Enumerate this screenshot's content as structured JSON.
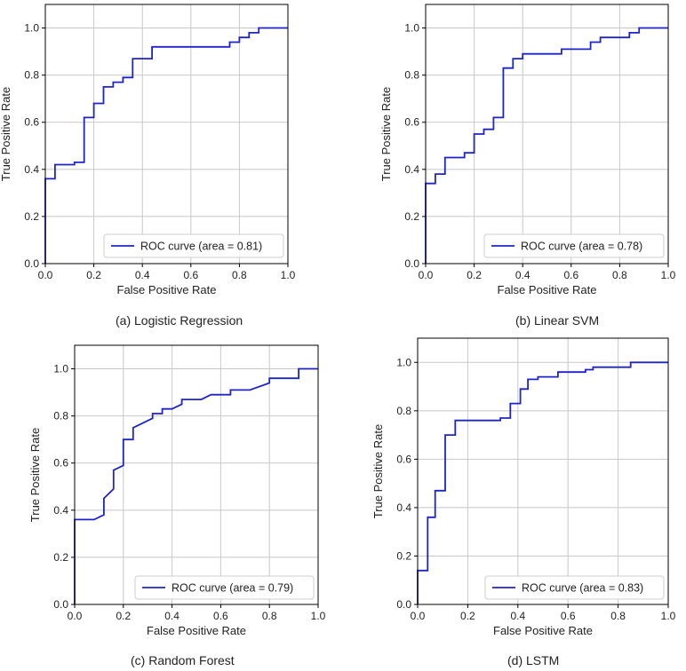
{
  "chart_data": [
    {
      "type": "line",
      "caption": "(a) Logistic Regression",
      "xlabel": "False Positive Rate",
      "ylabel": "True Positive Rate",
      "xlim": [
        0.0,
        1.0
      ],
      "ylim": [
        0.0,
        1.1
      ],
      "xticks": [
        "0.0",
        "0.2",
        "0.4",
        "0.6",
        "0.8",
        "1.0"
      ],
      "yticks": [
        "0.0",
        "0.2",
        "0.4",
        "0.6",
        "0.8",
        "1.0"
      ],
      "grid": true,
      "legend_position": "lower-right",
      "color": "#1f24c8",
      "series": [
        {
          "name": "ROC curve (area = 0.81)",
          "x": [
            0.0,
            0.0,
            0.04,
            0.04,
            0.12,
            0.12,
            0.16,
            0.16,
            0.2,
            0.2,
            0.24,
            0.24,
            0.28,
            0.28,
            0.32,
            0.32,
            0.36,
            0.36,
            0.44,
            0.44,
            0.76,
            0.76,
            0.8,
            0.8,
            0.84,
            0.84,
            0.88,
            0.88,
            1.0
          ],
          "y": [
            0.0,
            0.36,
            0.36,
            0.42,
            0.42,
            0.43,
            0.43,
            0.62,
            0.62,
            0.68,
            0.68,
            0.75,
            0.75,
            0.77,
            0.77,
            0.79,
            0.79,
            0.87,
            0.87,
            0.92,
            0.92,
            0.94,
            0.94,
            0.96,
            0.96,
            0.98,
            0.98,
            1.0,
            1.0
          ]
        }
      ]
    },
    {
      "type": "line",
      "caption": "(b) Linear SVM",
      "xlabel": "False Positive Rate",
      "ylabel": "True Positive Rate",
      "xlim": [
        0.0,
        1.0
      ],
      "ylim": [
        0.0,
        1.1
      ],
      "xticks": [
        "0.0",
        "0.2",
        "0.4",
        "0.6",
        "0.8",
        "1.0"
      ],
      "yticks": [
        "0.0",
        "0.2",
        "0.4",
        "0.6",
        "0.8",
        "1.0"
      ],
      "grid": true,
      "legend_position": "lower-right",
      "color": "#1f24c8",
      "series": [
        {
          "name": "ROC curve (area = 0.78)",
          "x": [
            0.0,
            0.0,
            0.04,
            0.04,
            0.08,
            0.08,
            0.16,
            0.16,
            0.2,
            0.2,
            0.24,
            0.24,
            0.28,
            0.28,
            0.32,
            0.32,
            0.36,
            0.36,
            0.4,
            0.4,
            0.56,
            0.56,
            0.68,
            0.68,
            0.72,
            0.72,
            0.84,
            0.84,
            0.88,
            0.88,
            1.0
          ],
          "y": [
            0.0,
            0.34,
            0.34,
            0.38,
            0.38,
            0.45,
            0.45,
            0.47,
            0.47,
            0.55,
            0.55,
            0.57,
            0.57,
            0.62,
            0.62,
            0.83,
            0.83,
            0.87,
            0.87,
            0.89,
            0.89,
            0.91,
            0.91,
            0.94,
            0.94,
            0.96,
            0.96,
            0.98,
            0.98,
            1.0,
            1.0
          ]
        }
      ]
    },
    {
      "type": "line",
      "caption": "(c) Random Forest",
      "xlabel": "False Positive Rate",
      "ylabel": "True Positive Rate",
      "xlim": [
        0.0,
        1.0
      ],
      "ylim": [
        0.0,
        1.1
      ],
      "xticks": [
        "0.0",
        "0.2",
        "0.4",
        "0.6",
        "0.8",
        "1.0"
      ],
      "yticks": [
        "0.0",
        "0.2",
        "0.4",
        "0.6",
        "0.8",
        "1.0"
      ],
      "grid": true,
      "legend_position": "lower-right",
      "color": "#1f24c8",
      "series": [
        {
          "name": "ROC curve (area = 0.79)",
          "x": [
            0.0,
            0.0,
            0.08,
            0.12,
            0.12,
            0.16,
            0.16,
            0.2,
            0.2,
            0.24,
            0.24,
            0.32,
            0.32,
            0.36,
            0.36,
            0.4,
            0.44,
            0.44,
            0.52,
            0.56,
            0.56,
            0.64,
            0.64,
            0.72,
            0.8,
            0.8,
            0.92,
            0.92,
            1.0
          ],
          "y": [
            0.0,
            0.36,
            0.36,
            0.38,
            0.45,
            0.49,
            0.57,
            0.59,
            0.7,
            0.7,
            0.75,
            0.79,
            0.81,
            0.81,
            0.83,
            0.83,
            0.85,
            0.87,
            0.87,
            0.89,
            0.89,
            0.89,
            0.91,
            0.91,
            0.94,
            0.96,
            0.96,
            1.0,
            1.0
          ]
        }
      ]
    },
    {
      "type": "line",
      "caption": "(d) LSTM",
      "xlabel": "False Positive Rate",
      "ylabel": "True Positive Rate",
      "xlim": [
        0.0,
        1.0
      ],
      "ylim": [
        0.0,
        1.1
      ],
      "xticks": [
        "0.0",
        "0.2",
        "0.4",
        "0.6",
        "0.8",
        "1.0"
      ],
      "yticks": [
        "0.0",
        "0.2",
        "0.4",
        "0.6",
        "0.8",
        "1.0"
      ],
      "grid": true,
      "legend_position": "lower-right",
      "color": "#1f24c8",
      "series": [
        {
          "name": "ROC curve (area = 0.83)",
          "x": [
            0.0,
            0.0,
            0.04,
            0.04,
            0.07,
            0.07,
            0.11,
            0.11,
            0.15,
            0.15,
            0.33,
            0.33,
            0.37,
            0.37,
            0.41,
            0.41,
            0.44,
            0.44,
            0.48,
            0.48,
            0.56,
            0.56,
            0.67,
            0.67,
            0.7,
            0.7,
            0.85,
            0.85,
            1.0
          ],
          "y": [
            0.0,
            0.14,
            0.14,
            0.36,
            0.36,
            0.47,
            0.47,
            0.7,
            0.7,
            0.76,
            0.76,
            0.77,
            0.77,
            0.83,
            0.83,
            0.89,
            0.89,
            0.93,
            0.93,
            0.94,
            0.94,
            0.96,
            0.96,
            0.97,
            0.97,
            0.98,
            0.98,
            1.0,
            1.0
          ]
        }
      ]
    }
  ]
}
